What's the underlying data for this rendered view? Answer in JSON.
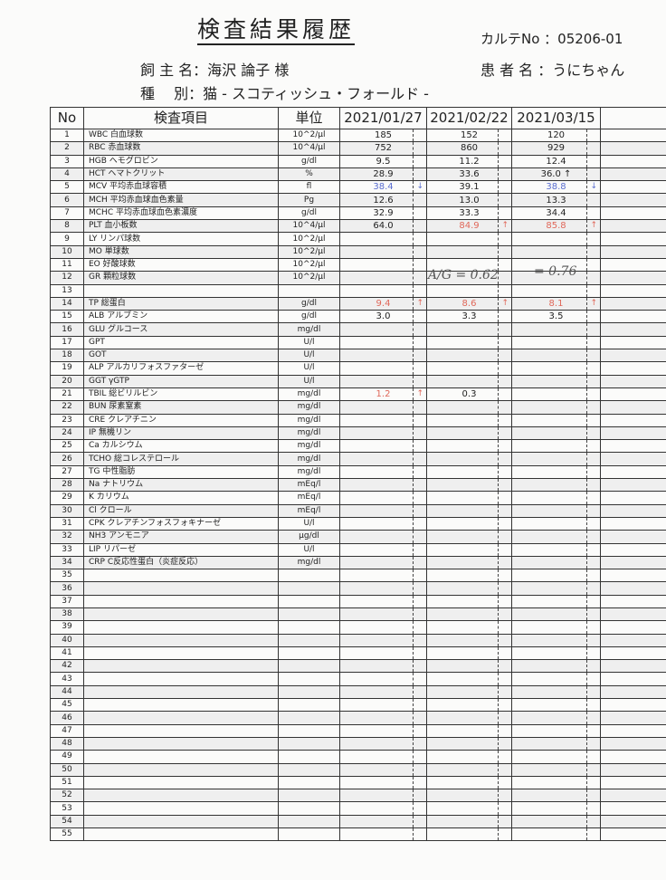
{
  "document": {
    "title": "検査結果履歴",
    "chart_no": "カルテNo ：05206-01",
    "owner": "飼 主 名：海沢 論子 様",
    "patient": "患 者 名 ：うにちゃん",
    "species": "種　 別：猫 - スコティッシュ・フォールド -"
  },
  "colors": {
    "high": "#e0685a",
    "low": "#5b6fd0",
    "normal": "#222222"
  },
  "table": {
    "headers": [
      "No",
      "検査項目",
      "単位",
      "2021/01/27",
      "2021/02/22",
      "2021/03/15",
      ""
    ],
    "rows": [
      {
        "no": "1",
        "item": "WBC 白血球数",
        "unit": "10^2/μl",
        "results": [
          {
            "v": "185"
          },
          {
            "v": "152"
          },
          {
            "v": "120"
          }
        ]
      },
      {
        "no": "2",
        "item": "RBC 赤血球数",
        "unit": "10^4/μl",
        "results": [
          {
            "v": "752"
          },
          {
            "v": "860"
          },
          {
            "v": "929"
          }
        ]
      },
      {
        "no": "3",
        "item": "HGB ヘモグロビン",
        "unit": "g/dl",
        "results": [
          {
            "v": "9.5"
          },
          {
            "v": "11.2"
          },
          {
            "v": "12.4"
          }
        ]
      },
      {
        "no": "4",
        "item": "HCT ヘマトクリット",
        "unit": "%",
        "results": [
          {
            "v": "28.9"
          },
          {
            "v": "33.6"
          },
          {
            "v": "36.0 ↑"
          }
        ]
      },
      {
        "no": "5",
        "item": "MCV 平均赤血球容積",
        "unit": "fl",
        "results": [
          {
            "v": "38.4",
            "s": "low",
            "f": "↓"
          },
          {
            "v": "39.1"
          },
          {
            "v": "38.8",
            "s": "low",
            "f": "↓"
          }
        ]
      },
      {
        "no": "6",
        "item": "MCH 平均赤血球血色素量",
        "unit": "Pg",
        "results": [
          {
            "v": "12.6"
          },
          {
            "v": "13.0"
          },
          {
            "v": "13.3"
          }
        ]
      },
      {
        "no": "7",
        "item": "MCHC 平均赤血球血色素濃度",
        "unit": "g/dl",
        "results": [
          {
            "v": "32.9"
          },
          {
            "v": "33.3"
          },
          {
            "v": "34.4"
          }
        ]
      },
      {
        "no": "8",
        "item": "PLT 血小板数",
        "unit": "10^4/μl",
        "results": [
          {
            "v": "64.0"
          },
          {
            "v": "84.9",
            "s": "high",
            "f": "↑"
          },
          {
            "v": "85.8",
            "s": "high",
            "f": "↑"
          }
        ]
      },
      {
        "no": "9",
        "item": "LY リンパ球数",
        "unit": "10^2/μl",
        "results": []
      },
      {
        "no": "10",
        "item": "MO 単球数",
        "unit": "10^2/μl",
        "results": []
      },
      {
        "no": "11",
        "item": "EO 好酸球数",
        "unit": "10^2/μl",
        "results": []
      },
      {
        "no": "12",
        "item": "GR 顆粒球数",
        "unit": "10^2/μl",
        "results": []
      },
      {
        "no": "13",
        "item": "",
        "unit": "",
        "results": []
      },
      {
        "no": "14",
        "item": "TP 総蛋白",
        "unit": "g/dl",
        "results": [
          {
            "v": "9.4",
            "s": "high",
            "f": "↑"
          },
          {
            "v": "8.6",
            "s": "high",
            "f": "↑"
          },
          {
            "v": "8.1",
            "s": "high",
            "f": "↑"
          }
        ]
      },
      {
        "no": "15",
        "item": "ALB アルブミン",
        "unit": "g/dl",
        "results": [
          {
            "v": "3.0"
          },
          {
            "v": "3.3"
          },
          {
            "v": "3.5"
          }
        ]
      },
      {
        "no": "16",
        "item": "GLU グルコース",
        "unit": "mg/dl",
        "results": []
      },
      {
        "no": "17",
        "item": "GPT",
        "unit": "U/l",
        "results": []
      },
      {
        "no": "18",
        "item": "GOT",
        "unit": "U/l",
        "results": []
      },
      {
        "no": "19",
        "item": "ALP アルカリフォスファターゼ",
        "unit": "U/l",
        "results": []
      },
      {
        "no": "20",
        "item": "GGT γGTP",
        "unit": "U/l",
        "results": []
      },
      {
        "no": "21",
        "item": "TBIL 総ビリルビン",
        "unit": "mg/dl",
        "results": [
          {
            "v": "1.2",
            "s": "high",
            "f": "↑"
          },
          {
            "v": "0.3"
          }
        ]
      },
      {
        "no": "22",
        "item": "BUN 尿素窒素",
        "unit": "mg/dl",
        "results": []
      },
      {
        "no": "23",
        "item": "CRE クレアチニン",
        "unit": "mg/dl",
        "results": []
      },
      {
        "no": "24",
        "item": "IP 無機リン",
        "unit": "mg/dl",
        "results": []
      },
      {
        "no": "25",
        "item": "Ca カルシウム",
        "unit": "mg/dl",
        "results": []
      },
      {
        "no": "26",
        "item": "TCHO 総コレステロール",
        "unit": "mg/dl",
        "results": []
      },
      {
        "no": "27",
        "item": "TG 中性脂肪",
        "unit": "mg/dl",
        "results": []
      },
      {
        "no": "28",
        "item": "Na ナトリウム",
        "unit": "mEq/l",
        "results": []
      },
      {
        "no": "29",
        "item": "K カリウム",
        "unit": "mEq/l",
        "results": []
      },
      {
        "no": "30",
        "item": "Cl クロール",
        "unit": "mEq/l",
        "results": []
      },
      {
        "no": "31",
        "item": "CPK クレアチンフォスフォキナーゼ",
        "unit": "U/l",
        "results": []
      },
      {
        "no": "32",
        "item": "NH3 アンモニア",
        "unit": "μg/dl",
        "results": []
      },
      {
        "no": "33",
        "item": "LIP リパーゼ",
        "unit": "U/l",
        "results": []
      },
      {
        "no": "34",
        "item": "CRP C反応性蛋白（炎症反応）",
        "unit": "mg/dl",
        "results": []
      },
      {
        "no": "35"
      },
      {
        "no": "36"
      },
      {
        "no": "37"
      },
      {
        "no": "38"
      },
      {
        "no": "39"
      },
      {
        "no": "40"
      },
      {
        "no": "41"
      },
      {
        "no": "42"
      },
      {
        "no": "43"
      },
      {
        "no": "44"
      },
      {
        "no": "45"
      },
      {
        "no": "46"
      },
      {
        "no": "47"
      },
      {
        "no": "48"
      },
      {
        "no": "49"
      },
      {
        "no": "50"
      },
      {
        "no": "51"
      },
      {
        "no": "52"
      },
      {
        "no": "53"
      },
      {
        "no": "54"
      },
      {
        "no": "55"
      }
    ]
  },
  "handwritten": {
    "ag_ratio_1": "A/G = 0.62",
    "ag_ratio_2": "= 0.76"
  }
}
